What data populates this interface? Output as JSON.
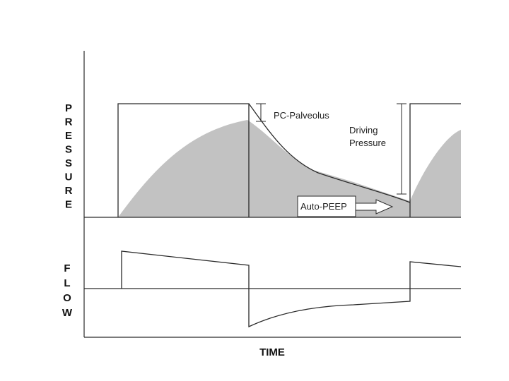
{
  "pressure_label": "PRESSURE",
  "flow_label": "FLOW",
  "time_label": "TIME",
  "annotations": {
    "pc_palveolus": "PC-Palveolus",
    "driving_pressure_line1": "Driving",
    "driving_pressure_line2": "Pressure",
    "auto_peep": "Auto-PEEP"
  },
  "colors": {
    "alveolar_fill": "#c2c2c2",
    "line": "#2a2a2a"
  }
}
